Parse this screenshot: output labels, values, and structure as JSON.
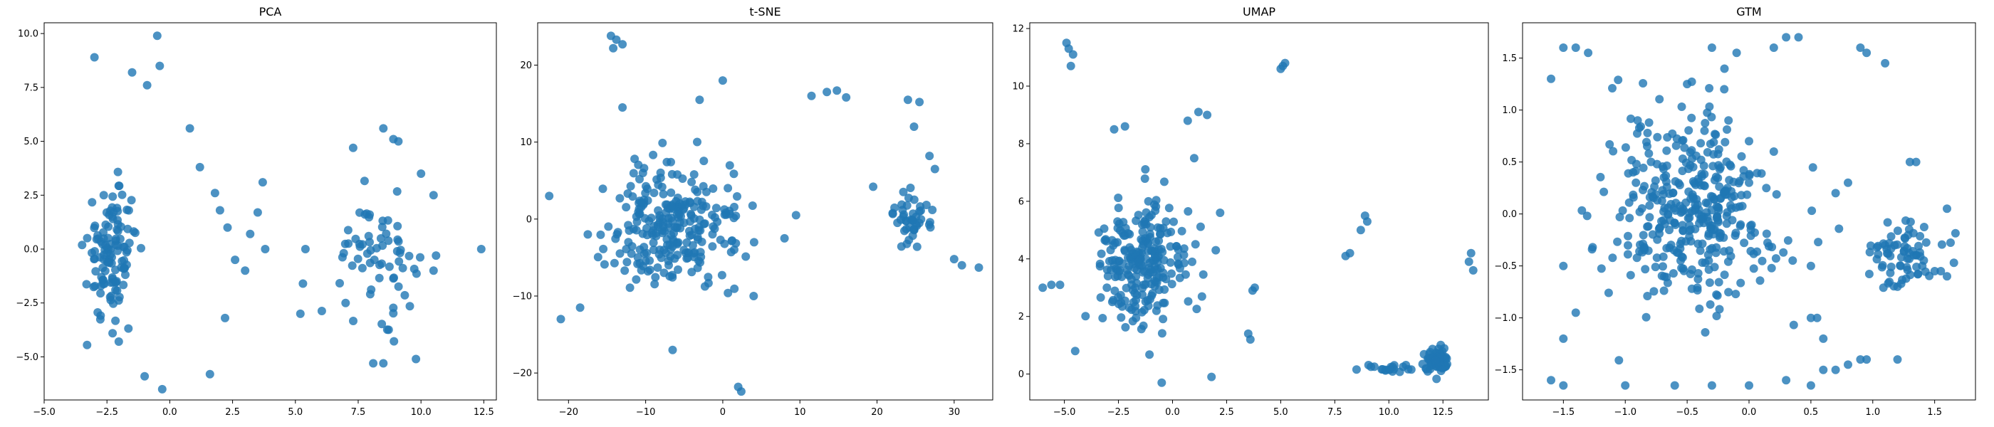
{
  "figure": {
    "background": "#ffffff",
    "point_color": "#1f77b4"
  },
  "chart_data": [
    {
      "type": "scatter",
      "title": "PCA",
      "xlabel": "",
      "ylabel": "",
      "xlim": [
        -5.0,
        13.0
      ],
      "ylim": [
        -7.0,
        10.5
      ],
      "xticks": [
        -5.0,
        -2.5,
        0.0,
        2.5,
        5.0,
        7.5,
        10.0,
        12.5
      ],
      "xtick_labels": [
        "−5.0",
        "−2.5",
        "0.0",
        "2.5",
        "5.0",
        "7.5",
        "10.0",
        "12.5"
      ],
      "yticks": [
        -5.0,
        -2.5,
        0.0,
        2.5,
        5.0,
        7.5,
        10.0
      ],
      "ytick_labels": [
        "−5.0",
        "−2.5",
        "0.0",
        "2.5",
        "5.0",
        "7.5",
        "10.0"
      ],
      "grid": false,
      "clusters": [
        {
          "name": "",
          "center": [
            -2.3,
            -0.2
          ],
          "spread": [
            0.9,
            2.8
          ],
          "n": 120
        },
        {
          "name": "",
          "center": [
            8.2,
            -0.3
          ],
          "spread": [
            1.5,
            2.3
          ],
          "n": 65
        }
      ],
      "points": [
        [
          -0.5,
          9.9
        ],
        [
          -3.0,
          8.9
        ],
        [
          -0.4,
          8.5
        ],
        [
          -1.5,
          8.2
        ],
        [
          -0.9,
          7.6
        ],
        [
          0.8,
          5.6
        ],
        [
          1.2,
          3.8
        ],
        [
          1.8,
          2.6
        ],
        [
          2.0,
          1.8
        ],
        [
          2.3,
          1.0
        ],
        [
          2.6,
          -0.5
        ],
        [
          3.0,
          -1.0
        ],
        [
          3.7,
          3.1
        ],
        [
          3.5,
          1.7
        ],
        [
          3.2,
          0.7
        ],
        [
          3.8,
          0.0
        ],
        [
          2.2,
          -3.2
        ],
        [
          1.6,
          -5.8
        ],
        [
          -0.3,
          -6.5
        ],
        [
          -1.0,
          -5.9
        ],
        [
          7.3,
          4.7
        ],
        [
          8.5,
          5.6
        ],
        [
          9.1,
          5.0
        ],
        [
          8.9,
          5.1
        ],
        [
          12.4,
          0.0
        ],
        [
          10.5,
          -1.0
        ],
        [
          9.8,
          -5.1
        ],
        [
          8.5,
          -5.3
        ],
        [
          8.1,
          -5.3
        ],
        [
          5.3,
          -1.6
        ],
        [
          5.4,
          0.0
        ],
        [
          5.2,
          -3.0
        ],
        [
          10.5,
          2.5
        ],
        [
          10.0,
          3.5
        ],
        [
          7.0,
          -2.5
        ],
        [
          10.6,
          -0.3
        ]
      ]
    },
    {
      "type": "scatter",
      "title": "t-SNE",
      "xlabel": "",
      "ylabel": "",
      "xlim": [
        -24.0,
        35.0
      ],
      "ylim": [
        -23.5,
        25.5
      ],
      "xticks": [
        -20,
        -10,
        0,
        10,
        20,
        30
      ],
      "xtick_labels": [
        "−20",
        "−10",
        "0",
        "10",
        "20",
        "30"
      ],
      "yticks": [
        -20,
        -10,
        0,
        10,
        20
      ],
      "ytick_labels": [
        "−20",
        "−10",
        "0",
        "10",
        "20"
      ],
      "grid": false,
      "clusters": [
        {
          "name": "",
          "center": [
            -6.0,
            -1.0
          ],
          "spread": [
            7.5,
            7.5
          ],
          "n": 260
        },
        {
          "name": "",
          "center": [
            24.5,
            0.0
          ],
          "spread": [
            2.0,
            3.5
          ],
          "n": 45
        }
      ],
      "points": [
        [
          -14.5,
          23.8
        ],
        [
          -13.8,
          23.3
        ],
        [
          -13.0,
          22.7
        ],
        [
          -14.2,
          22.2
        ],
        [
          13.5,
          16.5
        ],
        [
          14.8,
          16.7
        ],
        [
          16.0,
          15.8
        ],
        [
          11.5,
          16.0
        ],
        [
          24.0,
          15.5
        ],
        [
          25.5,
          15.2
        ],
        [
          24.8,
          12.0
        ],
        [
          26.8,
          8.2
        ],
        [
          27.5,
          6.5
        ],
        [
          19.5,
          4.2
        ],
        [
          30.0,
          -5.2
        ],
        [
          31.0,
          -6.0
        ],
        [
          33.2,
          -6.3
        ],
        [
          2.0,
          -21.8
        ],
        [
          2.4,
          -22.4
        ],
        [
          -6.5,
          -17.0
        ],
        [
          -22.5,
          3.0
        ],
        [
          -21.0,
          -13.0
        ],
        [
          0.0,
          18.0
        ],
        [
          -3.0,
          15.5
        ],
        [
          9.5,
          0.5
        ],
        [
          8.0,
          -2.5
        ],
        [
          4.0,
          -10.0
        ],
        [
          -18.5,
          -11.5
        ],
        [
          -13.0,
          14.5
        ],
        [
          -17.5,
          -2.0
        ]
      ]
    },
    {
      "type": "scatter",
      "title": "UMAP",
      "xlabel": "",
      "ylabel": "",
      "xlim": [
        -6.6,
        14.6
      ],
      "ylim": [
        -0.9,
        12.2
      ],
      "xticks": [
        -5.0,
        -2.5,
        0.0,
        2.5,
        5.0,
        7.5,
        10.0,
        12.5
      ],
      "xtick_labels": [
        "−5.0",
        "−2.5",
        "0.0",
        "2.5",
        "5.0",
        "7.5",
        "10.0",
        "12.5"
      ],
      "yticks": [
        0,
        2,
        4,
        6,
        8,
        10,
        12
      ],
      "ytick_labels": [
        "0",
        "2",
        "4",
        "6",
        "8",
        "10",
        "12"
      ],
      "grid": false,
      "clusters": [
        {
          "name": "",
          "center": [
            -1.5,
            3.8
          ],
          "spread": [
            1.8,
            2.0
          ],
          "n": 240
        },
        {
          "name": "",
          "center": [
            12.2,
            0.4
          ],
          "spread": [
            0.5,
            0.45
          ],
          "n": 80
        },
        {
          "name": "",
          "center": [
            10.0,
            0.2
          ],
          "spread": [
            1.3,
            0.15
          ],
          "n": 20
        }
      ],
      "points": [
        [
          -4.9,
          11.5
        ],
        [
          -4.8,
          11.3
        ],
        [
          -4.7,
          10.7
        ],
        [
          -4.6,
          11.1
        ],
        [
          5.0,
          10.6
        ],
        [
          5.2,
          10.8
        ],
        [
          5.1,
          10.7
        ],
        [
          1.6,
          9.0
        ],
        [
          1.2,
          9.1
        ],
        [
          0.7,
          8.8
        ],
        [
          -2.2,
          8.6
        ],
        [
          -2.7,
          8.5
        ],
        [
          8.9,
          5.5
        ],
        [
          9.0,
          5.3
        ],
        [
          8.7,
          5.0
        ],
        [
          8.2,
          4.2
        ],
        [
          8.0,
          4.1
        ],
        [
          13.8,
          4.2
        ],
        [
          13.7,
          3.9
        ],
        [
          13.9,
          3.6
        ],
        [
          3.8,
          3.0
        ],
        [
          3.7,
          2.9
        ],
        [
          3.5,
          1.4
        ],
        [
          3.6,
          1.2
        ],
        [
          -6.0,
          3.0
        ],
        [
          -5.6,
          3.1
        ],
        [
          -5.2,
          3.1
        ],
        [
          -4.5,
          0.8
        ],
        [
          -0.5,
          -0.3
        ],
        [
          1.8,
          -0.1
        ],
        [
          2.0,
          4.3
        ],
        [
          2.2,
          5.6
        ],
        [
          1.0,
          7.5
        ]
      ]
    },
    {
      "type": "scatter",
      "title": "GTM",
      "xlabel": "",
      "ylabel": "",
      "xlim": [
        -1.83,
        1.83
      ],
      "ylim": [
        -1.79,
        1.84
      ],
      "xticks": [
        -1.5,
        -1.0,
        -0.5,
        0.0,
        0.5,
        1.0,
        1.5
      ],
      "xtick_labels": [
        "−1.5",
        "−1.0",
        "−0.5",
        "0.0",
        "0.5",
        "1.0",
        "1.5"
      ],
      "yticks": [
        -1.5,
        -1.0,
        -0.5,
        0.0,
        0.5,
        1.0,
        1.5
      ],
      "ytick_labels": [
        "−1.5",
        "−1.0",
        "−0.5",
        "0.0",
        "0.5",
        "1.0",
        "1.5"
      ],
      "grid": false,
      "clusters": [
        {
          "name": "",
          "center": [
            -0.45,
            0.05
          ],
          "spread": [
            0.6,
            0.85
          ],
          "n": 380
        },
        {
          "name": "",
          "center": [
            1.25,
            -0.42
          ],
          "spread": [
            0.3,
            0.3
          ],
          "n": 70
        }
      ],
      "points": [
        [
          -1.5,
          1.6
        ],
        [
          -1.4,
          1.6
        ],
        [
          -1.3,
          1.55
        ],
        [
          -0.3,
          1.6
        ],
        [
          -0.1,
          1.55
        ],
        [
          0.3,
          1.7
        ],
        [
          0.4,
          1.7
        ],
        [
          0.2,
          1.6
        ],
        [
          0.9,
          1.6
        ],
        [
          0.95,
          1.55
        ],
        [
          1.1,
          1.45
        ],
        [
          -1.6,
          1.3
        ],
        [
          -1.6,
          -1.6
        ],
        [
          -1.5,
          -1.65
        ],
        [
          -1.0,
          -1.65
        ],
        [
          -0.6,
          -1.65
        ],
        [
          -0.3,
          -1.65
        ],
        [
          0.0,
          -1.65
        ],
        [
          0.3,
          -1.6
        ],
        [
          0.5,
          -1.65
        ],
        [
          0.6,
          -1.5
        ],
        [
          0.7,
          -1.5
        ],
        [
          0.8,
          -1.45
        ],
        [
          0.9,
          -1.4
        ],
        [
          0.95,
          -1.4
        ],
        [
          1.2,
          -1.4
        ],
        [
          1.6,
          0.05
        ],
        [
          1.3,
          0.5
        ],
        [
          1.35,
          0.5
        ],
        [
          0.7,
          0.2
        ],
        [
          0.8,
          0.3
        ],
        [
          0.5,
          -0.5
        ],
        [
          0.5,
          -1.0
        ],
        [
          0.55,
          -1.0
        ],
        [
          0.6,
          -1.2
        ],
        [
          1.4,
          -0.5
        ],
        [
          1.5,
          -0.55
        ],
        [
          1.55,
          -0.55
        ],
        [
          1.6,
          -0.6
        ],
        [
          -1.5,
          -0.5
        ],
        [
          -1.5,
          -1.2
        ],
        [
          -1.4,
          -0.95
        ],
        [
          0.0,
          0.7
        ],
        [
          0.2,
          0.6
        ],
        [
          0.0,
          0.3
        ],
        [
          -0.2,
          1.2
        ],
        [
          -0.5,
          1.25
        ],
        [
          -0.9,
          0.9
        ],
        [
          1.1,
          -0.3
        ],
        [
          1.2,
          -0.7
        ]
      ]
    }
  ]
}
